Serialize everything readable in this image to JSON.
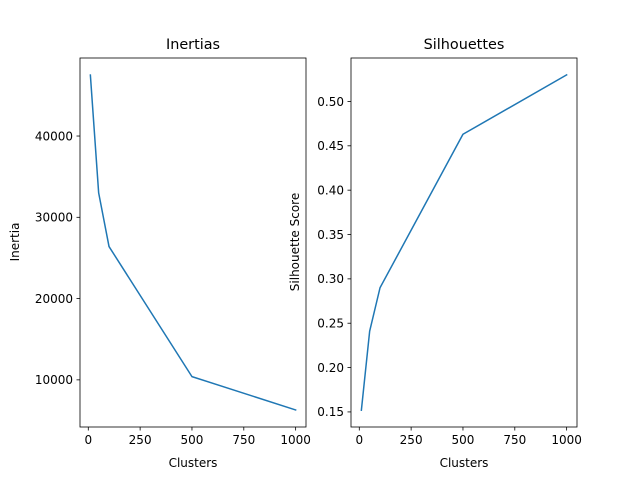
{
  "chart_data": [
    {
      "type": "line",
      "title": "Inertias",
      "xlabel": "Clusters",
      "ylabel": "Inertia",
      "x": [
        10,
        50,
        100,
        500,
        1000
      ],
      "series": [
        {
          "values": [
            47500,
            33000,
            26400,
            10400,
            6300
          ],
          "color": "#1f77b4"
        }
      ],
      "xlim": [
        -40,
        1050
      ],
      "ylim": [
        4200,
        49600
      ],
      "xticks": [
        0,
        250,
        500,
        750,
        1000
      ],
      "xtick_labels": [
        "0",
        "250",
        "500",
        "750",
        "1000"
      ],
      "yticks": [
        10000,
        20000,
        30000,
        40000
      ],
      "ytick_labels": [
        "10000",
        "20000",
        "30000",
        "40000"
      ],
      "grid": false,
      "legend": "none"
    },
    {
      "type": "line",
      "title": "Silhouettes",
      "xlabel": "Clusters",
      "ylabel": "Silhouette Score",
      "x": [
        10,
        50,
        100,
        500,
        1000
      ],
      "series": [
        {
          "values": [
            0.152,
            0.241,
            0.29,
            0.463,
            0.53
          ],
          "color": "#1f77b4"
        }
      ],
      "xlim": [
        -40,
        1050
      ],
      "ylim": [
        0.133,
        0.549
      ],
      "xticks": [
        0,
        250,
        500,
        750,
        1000
      ],
      "xtick_labels": [
        "0",
        "250",
        "500",
        "750",
        "1000"
      ],
      "yticks": [
        0.15,
        0.2,
        0.25,
        0.3,
        0.35,
        0.4,
        0.45,
        0.5
      ],
      "ytick_labels": [
        "0.15",
        "0.20",
        "0.25",
        "0.30",
        "0.35",
        "0.40",
        "0.45",
        "0.50"
      ],
      "grid": false,
      "legend": "none"
    }
  ]
}
